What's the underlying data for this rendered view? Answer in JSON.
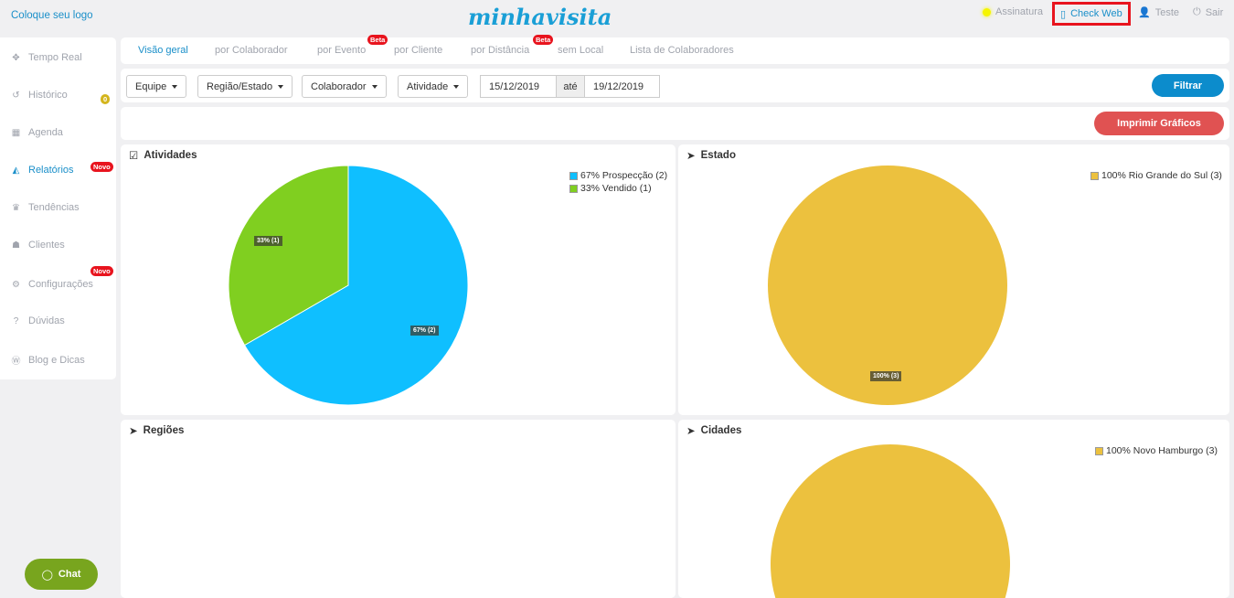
{
  "header": {
    "logo_placeholder": "Coloque seu logo",
    "brand": "minhavisita",
    "links": {
      "subscription": "Assinatura",
      "check_web": "Check Web",
      "user": "Teste",
      "logout": "Sair"
    }
  },
  "sidebar": {
    "items": [
      {
        "label": "Tempo Real",
        "icon": "crosshair-icon"
      },
      {
        "label": "Histórico",
        "icon": "history-icon",
        "badge": "0"
      },
      {
        "label": "Agenda",
        "icon": "calendar-icon"
      },
      {
        "label": "Relatórios",
        "icon": "area-chart-icon",
        "badge": "Novo",
        "active": true
      },
      {
        "label": "Tendências",
        "icon": "trophy-icon"
      },
      {
        "label": "Clientes",
        "icon": "users-icon"
      },
      {
        "label": "Configurações",
        "icon": "cogs-icon",
        "badge": "Novo"
      },
      {
        "label": "Dúvidas",
        "icon": "question-icon"
      },
      {
        "label": "Blog e Dicas",
        "icon": "wordpress-icon"
      }
    ]
  },
  "tabs": [
    {
      "label": "Visão geral",
      "active": true
    },
    {
      "label": "por Colaborador"
    },
    {
      "label": "por Evento",
      "badge": "Beta"
    },
    {
      "label": "por Cliente"
    },
    {
      "label": "por Distância",
      "badge": "Beta"
    },
    {
      "label": "sem Local"
    },
    {
      "label": "Lista de Colaboradores"
    }
  ],
  "filters": {
    "team": "Equipe",
    "region": "Região/Estado",
    "collaborator": "Colaborador",
    "activity": "Atividade",
    "date_from": "15/12/2019",
    "date_sep": "até",
    "date_to": "19/12/2019",
    "filter_button": "Filtrar"
  },
  "print_button": "Imprimir Gráficos",
  "chat": "Chat",
  "colors": {
    "accent": "#1a8fc9",
    "blue": "#0fbfff",
    "green": "#80cf20",
    "yellow": "#ecc13e",
    "red": "#e05252"
  },
  "chart_data": [
    {
      "type": "pie",
      "title": "Atividades",
      "slices": [
        {
          "label": "67% Prospecção (2)",
          "data_label": "67% (2)",
          "value": 2,
          "color": "#0fbfff"
        },
        {
          "label": "33% Vendido (1)",
          "data_label": "33% (1)",
          "value": 1,
          "color": "#80cf20"
        }
      ],
      "legend": "top-right"
    },
    {
      "type": "pie",
      "title": "Estado",
      "slices": [
        {
          "label": "100% Rio Grande do Sul (3)",
          "data_label": "100% (3)",
          "value": 3,
          "color": "#ecc13e"
        }
      ],
      "legend": "top-right"
    },
    {
      "type": "pie",
      "title": "Regiões",
      "slices": []
    },
    {
      "type": "pie",
      "title": "Cidades",
      "slices": [
        {
          "label": "100% Novo Hamburgo (3)",
          "value": 3,
          "color": "#ecc13e"
        }
      ],
      "legend": "top-right"
    }
  ]
}
